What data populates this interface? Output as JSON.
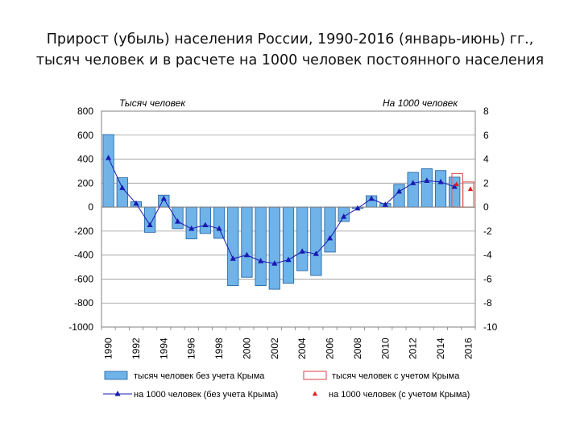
{
  "title": {
    "line1": "Прирост (убыль) населения России, 1990-2016  (январь-июнь) гг.,",
    "line2": "тысяч человек и в расчете на 1000 человек постоянного населения"
  },
  "chart_data": {
    "type": "bar",
    "ylabel_left": "Тысяч человек",
    "ylabel_right": "На 1000 человек",
    "ylim_left": [
      -1000,
      800
    ],
    "ylim_right": [
      -10,
      8
    ],
    "yticks_left": [
      "800",
      "600",
      "400",
      "200",
      "0",
      "-200",
      "-400",
      "-600",
      "-800",
      "-1000"
    ],
    "yticks_right": [
      "8",
      "6",
      "4",
      "2",
      "0",
      "-2",
      "-4",
      "-6",
      "-8",
      "-10"
    ],
    "x_labels": [
      "1990",
      "1992",
      "1994",
      "1996",
      "1998",
      "2000",
      "2002",
      "2004",
      "2006",
      "2008",
      "2010",
      "2012",
      "2014",
      "2016"
    ],
    "years": [
      1990,
      1991,
      1992,
      1993,
      1994,
      1995,
      1996,
      1997,
      1998,
      1999,
      2000,
      2001,
      2002,
      2003,
      2004,
      2005,
      2006,
      2007,
      2008,
      2009,
      2010,
      2011,
      2012,
      2013,
      2014,
      2015,
      2016
    ],
    "grid": true,
    "legend_position": "bottom",
    "series": [
      {
        "name": "тысяч человек без учета Крыма",
        "kind": "bar",
        "axis": "left",
        "color": "#6fb3e8",
        "values": [
          605,
          245,
          45,
          -210,
          100,
          -180,
          -265,
          -220,
          -260,
          -655,
          -585,
          -655,
          -685,
          -635,
          -530,
          -570,
          -375,
          -120,
          -10,
          95,
          30,
          190,
          290,
          320,
          305,
          250,
          null
        ]
      },
      {
        "name": "тысяч человек с учетом Крыма",
        "kind": "bar",
        "axis": "left",
        "color": "#e06060",
        "values": [
          null,
          null,
          null,
          null,
          null,
          null,
          null,
          null,
          null,
          null,
          null,
          null,
          null,
          null,
          null,
          null,
          null,
          null,
          null,
          null,
          null,
          null,
          null,
          null,
          null,
          280,
          210
        ]
      },
      {
        "name": "на 1000 человек (без учета Крыма)",
        "kind": "line",
        "axis": "right",
        "color": "#1a1ab0",
        "values": [
          4.1,
          1.6,
          0.3,
          -1.5,
          0.7,
          -1.2,
          -1.8,
          -1.5,
          -1.8,
          -4.3,
          -4.0,
          -4.5,
          -4.7,
          -4.4,
          -3.7,
          -3.9,
          -2.6,
          -0.8,
          -0.1,
          0.7,
          0.2,
          1.3,
          2.0,
          2.2,
          2.1,
          1.7,
          null
        ]
      },
      {
        "name": "на 1000 человек (с учетом Крыма)",
        "kind": "marker",
        "axis": "right",
        "color": "#e02020",
        "values": [
          null,
          null,
          null,
          null,
          null,
          null,
          null,
          null,
          null,
          null,
          null,
          null,
          null,
          null,
          null,
          null,
          null,
          null,
          null,
          null,
          null,
          null,
          null,
          null,
          null,
          1.9,
          1.5
        ]
      }
    ]
  }
}
